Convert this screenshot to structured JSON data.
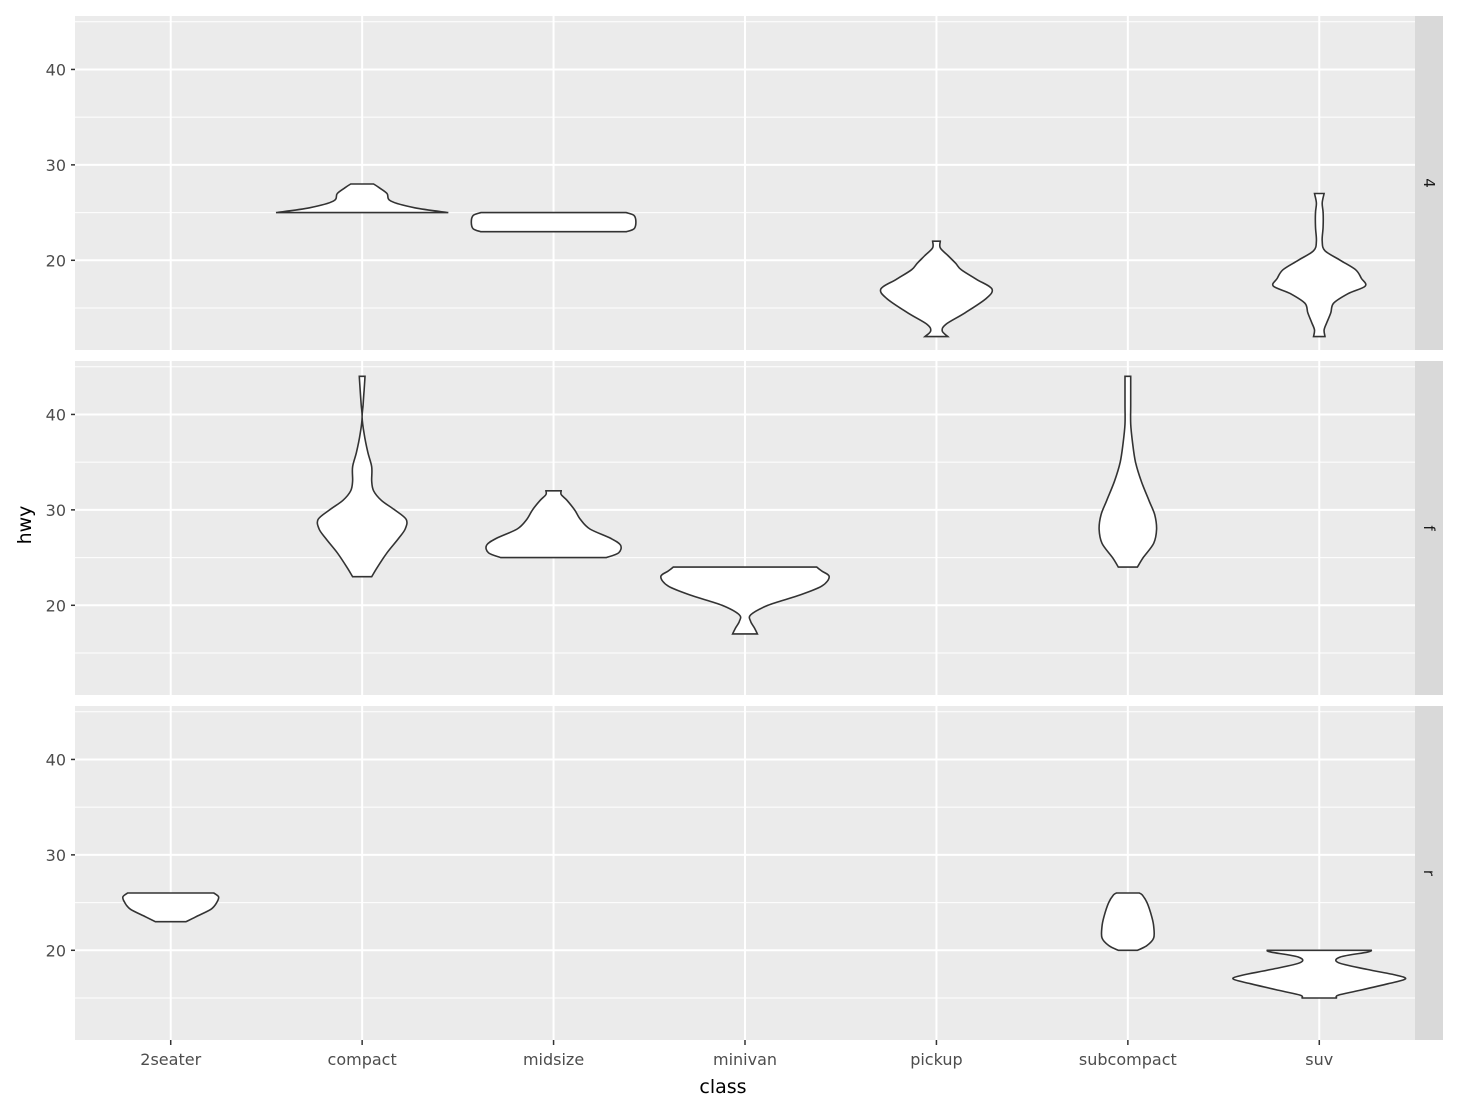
{
  "chart_data": {
    "type": "violin",
    "title": "",
    "xlabel": "class",
    "ylabel": "hwy",
    "facet_var": "drv",
    "facets": [
      "4",
      "f",
      "r"
    ],
    "categories": [
      "2seater",
      "compact",
      "midsize",
      "minivan",
      "pickup",
      "subcompact",
      "suv"
    ],
    "ylim": [
      10.6,
      45.6
    ],
    "y_ticks": [
      20,
      30,
      40
    ],
    "y_minor": [
      15,
      25,
      35,
      45
    ],
    "grid": true,
    "colors": {
      "panel_bg": "#ebebeb",
      "grid": "#ffffff",
      "strip_bg": "#d9d9d9",
      "violin_fill": "#ffffff",
      "violin_stroke": "#333333"
    },
    "violins": [
      {
        "facet": "4",
        "class": "compact",
        "min": 25,
        "max": 28,
        "profile": [
          [
            25,
            0.9
          ],
          [
            25.5,
            0.55
          ],
          [
            26.2,
            0.3
          ],
          [
            27,
            0.26
          ],
          [
            27.6,
            0.18
          ],
          [
            28,
            0.12
          ]
        ]
      },
      {
        "facet": "4",
        "class": "midsize",
        "min": 23,
        "max": 25,
        "profile": [
          [
            23,
            0.76
          ],
          [
            23.3,
            0.84
          ],
          [
            24,
            0.86
          ],
          [
            24.7,
            0.84
          ],
          [
            25,
            0.76
          ]
        ]
      },
      {
        "facet": "4",
        "class": "pickup",
        "min": 12,
        "max": 22,
        "profile": [
          [
            12,
            0.12
          ],
          [
            12.6,
            0.06
          ],
          [
            13.3,
            0.1
          ],
          [
            14.5,
            0.3
          ],
          [
            16,
            0.52
          ],
          [
            17,
            0.58
          ],
          [
            18,
            0.42
          ],
          [
            19,
            0.26
          ],
          [
            19.7,
            0.2
          ],
          [
            20.5,
            0.12
          ],
          [
            21.3,
            0.04
          ],
          [
            22,
            0.04
          ]
        ]
      },
      {
        "facet": "4",
        "class": "suv",
        "min": 12,
        "max": 27,
        "profile": [
          [
            12,
            0.06
          ],
          [
            12.7,
            0.05
          ],
          [
            13.5,
            0.08
          ],
          [
            14.5,
            0.12
          ],
          [
            15.5,
            0.15
          ],
          [
            16.5,
            0.3
          ],
          [
            17.3,
            0.48
          ],
          [
            18.1,
            0.44
          ],
          [
            19,
            0.38
          ],
          [
            20,
            0.22
          ],
          [
            21,
            0.06
          ],
          [
            22,
            0.03
          ],
          [
            23.5,
            0.04
          ],
          [
            25,
            0.04
          ],
          [
            26,
            0.03
          ],
          [
            27,
            0.05
          ]
        ]
      },
      {
        "facet": "f",
        "class": "compact",
        "min": 23,
        "max": 44,
        "profile": [
          [
            23,
            0.1
          ],
          [
            24,
            0.16
          ],
          [
            25.5,
            0.26
          ],
          [
            27,
            0.38
          ],
          [
            28,
            0.45
          ],
          [
            29,
            0.46
          ],
          [
            30,
            0.34
          ],
          [
            31,
            0.2
          ],
          [
            32,
            0.12
          ],
          [
            33,
            0.1
          ],
          [
            34.5,
            0.1
          ],
          [
            36,
            0.06
          ],
          [
            38,
            0.02
          ],
          [
            39.7,
            0.0
          ],
          [
            41,
            0.01
          ],
          [
            42.5,
            0.02
          ],
          [
            44,
            0.03
          ]
        ]
      },
      {
        "facet": "f",
        "class": "midsize",
        "min": 25,
        "max": 32,
        "profile": [
          [
            25,
            0.55
          ],
          [
            25.5,
            0.68
          ],
          [
            26.3,
            0.7
          ],
          [
            27,
            0.6
          ],
          [
            28,
            0.38
          ],
          [
            29,
            0.28
          ],
          [
            30,
            0.22
          ],
          [
            31,
            0.14
          ],
          [
            31.6,
            0.08
          ],
          [
            32,
            0.08
          ]
        ]
      },
      {
        "facet": "f",
        "class": "minivan",
        "min": 17,
        "max": 24,
        "profile": [
          [
            17,
            0.13
          ],
          [
            17.6,
            0.1
          ],
          [
            18.3,
            0.06
          ],
          [
            19,
            0.06
          ],
          [
            20,
            0.24
          ],
          [
            21,
            0.55
          ],
          [
            22,
            0.8
          ],
          [
            23,
            0.88
          ],
          [
            23.6,
            0.8
          ],
          [
            24,
            0.75
          ]
        ]
      },
      {
        "facet": "f",
        "class": "subcompact",
        "min": 24,
        "max": 44,
        "profile": [
          [
            24,
            0.1
          ],
          [
            25,
            0.16
          ],
          [
            26.5,
            0.27
          ],
          [
            28,
            0.3
          ],
          [
            29.5,
            0.28
          ],
          [
            31,
            0.22
          ],
          [
            33,
            0.14
          ],
          [
            35,
            0.08
          ],
          [
            37,
            0.05
          ],
          [
            39,
            0.03
          ],
          [
            41,
            0.03
          ],
          [
            44,
            0.03
          ]
        ]
      },
      {
        "facet": "r",
        "class": "2seater",
        "min": 23,
        "max": 26,
        "profile": [
          [
            23,
            0.16
          ],
          [
            23.5,
            0.26
          ],
          [
            24.3,
            0.42
          ],
          [
            25,
            0.48
          ],
          [
            25.6,
            0.5
          ],
          [
            26,
            0.45
          ]
        ]
      },
      {
        "facet": "r",
        "class": "subcompact",
        "min": 20,
        "max": 26,
        "profile": [
          [
            20,
            0.1
          ],
          [
            20.5,
            0.2
          ],
          [
            21.3,
            0.27
          ],
          [
            22.5,
            0.27
          ],
          [
            23.5,
            0.25
          ],
          [
            25,
            0.2
          ],
          [
            25.8,
            0.15
          ],
          [
            26,
            0.12
          ]
        ]
      },
      {
        "facet": "r",
        "class": "suv",
        "min": 15,
        "max": 20,
        "profile": [
          [
            15,
            0.18
          ],
          [
            15.3,
            0.2
          ],
          [
            15.8,
            0.42
          ],
          [
            16.5,
            0.72
          ],
          [
            17,
            0.9
          ],
          [
            17.4,
            0.8
          ],
          [
            18,
            0.5
          ],
          [
            18.7,
            0.2
          ],
          [
            19.3,
            0.22
          ],
          [
            19.8,
            0.5
          ],
          [
            20,
            0.55
          ]
        ]
      }
    ]
  }
}
